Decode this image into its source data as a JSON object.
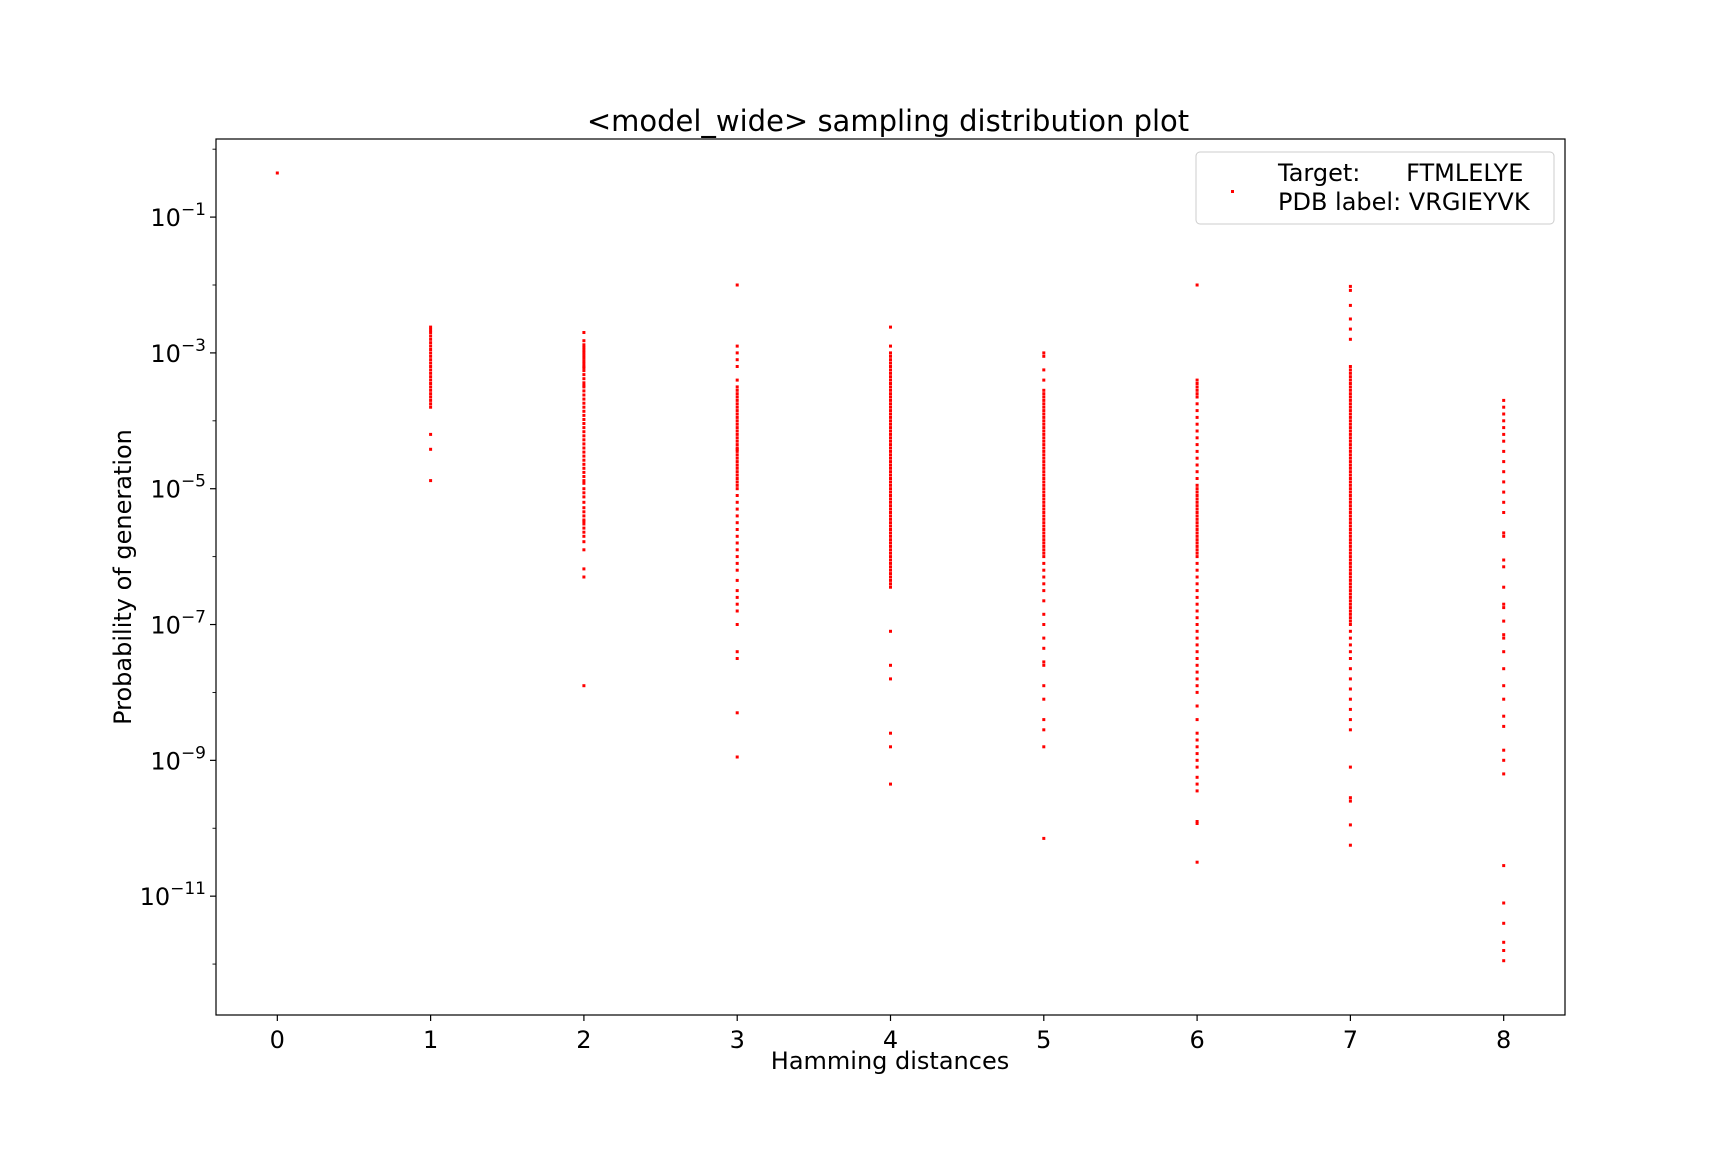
{
  "chart_data": {
    "type": "scatter",
    "title": "<model_wide> sampling distribution plot",
    "xlabel": "Hamming distances",
    "ylabel": "Probability of generation",
    "x_ticks": [
      "0",
      "1",
      "2",
      "3",
      "4",
      "5",
      "6",
      "7",
      "8"
    ],
    "y_ticks": [
      {
        "base": "10",
        "exp": "−1",
        "value": 0.1
      },
      {
        "base": "10",
        "exp": "−3",
        "value": 0.001
      },
      {
        "base": "10",
        "exp": "−5",
        "value": 1e-05
      },
      {
        "base": "10",
        "exp": "−7",
        "value": 1e-07
      },
      {
        "base": "10",
        "exp": "−9",
        "value": 1e-09
      },
      {
        "base": "10",
        "exp": "−11",
        "value": 1e-11
      }
    ],
    "x_range": [
      -0.4,
      8.4
    ],
    "y_log": true,
    "y_range_log10": [
      -12.75,
      0.15
    ],
    "grid": false,
    "legend_position": "top-right",
    "legend_entries": [
      "Target:      FTMLELYE",
      "PDB label: VRGIEYVK"
    ],
    "marker_color": "#ff0000",
    "series": [
      {
        "x": [
          0
        ],
        "y_log10": [
          -0.35
        ]
      },
      {
        "x": [
          1,
          1,
          1,
          1,
          1,
          1,
          1,
          1,
          1,
          1,
          1,
          1,
          1,
          1,
          1,
          1,
          1,
          1,
          1,
          1,
          1,
          1,
          1,
          1,
          1,
          1,
          1,
          1
        ],
        "y_log10": [
          -2.62,
          -2.66,
          -2.7,
          -2.75,
          -2.8,
          -2.85,
          -2.9,
          -2.95,
          -3.0,
          -3.05,
          -3.1,
          -3.15,
          -3.2,
          -3.25,
          -3.3,
          -3.35,
          -3.4,
          -3.45,
          -3.5,
          -3.55,
          -3.6,
          -3.65,
          -3.7,
          -3.75,
          -3.8,
          -4.2,
          -4.42,
          -4.88
        ]
      },
      {
        "x": [
          2,
          2,
          2,
          2,
          2,
          2,
          2,
          2,
          2,
          2,
          2,
          2,
          2,
          2,
          2,
          2,
          2,
          2,
          2,
          2,
          2,
          2,
          2,
          2,
          2,
          2,
          2,
          2,
          2,
          2,
          2,
          2,
          2,
          2,
          2,
          2,
          2,
          2,
          2,
          2,
          2,
          2,
          2,
          2,
          2,
          2,
          2,
          2,
          2,
          2,
          2,
          2,
          2,
          2,
          2,
          2,
          2,
          2,
          2,
          2
        ],
        "y_log10": [
          -2.7,
          -2.82,
          -2.88,
          -2.92,
          -2.96,
          -3.0,
          -3.04,
          -3.08,
          -3.12,
          -3.16,
          -3.2,
          -3.26,
          -3.32,
          -3.38,
          -3.44,
          -3.5,
          -3.56,
          -3.62,
          -3.68,
          -3.74,
          -3.8,
          -3.86,
          -3.92,
          -3.98,
          -4.04,
          -4.1,
          -4.16,
          -4.22,
          -4.28,
          -4.34,
          -4.4,
          -4.46,
          -4.52,
          -4.58,
          -4.64,
          -4.7,
          -4.76,
          -4.82,
          -4.88,
          -5.0,
          -5.06,
          -5.12,
          -5.2,
          -5.28,
          -5.34,
          -5.4,
          -5.46,
          -5.52,
          -5.58,
          -5.64,
          -5.7,
          -5.78,
          -5.9,
          -6.18,
          -6.3,
          -7.9,
          -5.48,
          -4.92,
          -3.48,
          -3.22
        ]
      },
      {
        "x": [
          3,
          3,
          3,
          3,
          3,
          3,
          3,
          3,
          3,
          3,
          3,
          3,
          3,
          3,
          3,
          3,
          3,
          3,
          3,
          3,
          3,
          3,
          3,
          3,
          3,
          3,
          3,
          3,
          3,
          3,
          3,
          3,
          3,
          3,
          3,
          3,
          3,
          3,
          3,
          3,
          3,
          3,
          3,
          3,
          3,
          3,
          3,
          3,
          3,
          3,
          3,
          3,
          3,
          3,
          3,
          3,
          3,
          3,
          3,
          3
        ],
        "y_log10": [
          -2.0,
          -2.9,
          -3.0,
          -3.1,
          -3.2,
          -3.4,
          -3.5,
          -3.55,
          -3.6,
          -3.65,
          -3.7,
          -3.75,
          -3.8,
          -3.85,
          -3.9,
          -3.95,
          -4.0,
          -4.05,
          -4.1,
          -4.15,
          -4.2,
          -4.25,
          -4.3,
          -4.35,
          -4.4,
          -4.45,
          -4.5,
          -4.55,
          -4.6,
          -4.65,
          -4.7,
          -4.75,
          -4.8,
          -4.85,
          -4.9,
          -4.95,
          -5.0,
          -5.1,
          -5.2,
          -5.3,
          -5.4,
          -5.5,
          -5.6,
          -5.7,
          -5.8,
          -5.9,
          -6.0,
          -6.1,
          -6.2,
          -6.35,
          -6.5,
          -6.6,
          -6.7,
          -6.8,
          -7.0,
          -7.4,
          -7.5,
          -8.3,
          -8.95,
          -4.42
        ]
      },
      {
        "x": [
          4,
          4,
          4,
          4,
          4,
          4,
          4,
          4,
          4,
          4,
          4,
          4,
          4,
          4,
          4,
          4,
          4,
          4,
          4,
          4,
          4,
          4,
          4,
          4,
          4,
          4,
          4,
          4,
          4,
          4,
          4,
          4,
          4,
          4,
          4,
          4,
          4,
          4,
          4,
          4,
          4,
          4,
          4,
          4,
          4,
          4,
          4,
          4,
          4,
          4,
          4,
          4,
          4,
          4,
          4,
          4,
          4,
          4,
          4,
          4,
          4,
          4,
          4,
          4,
          4,
          4,
          4,
          4,
          4,
          4,
          4,
          4,
          4,
          4,
          4,
          4,
          4,
          4
        ],
        "y_log10": [
          -2.62,
          -2.9,
          -3.0,
          -3.05,
          -3.1,
          -3.15,
          -3.2,
          -3.25,
          -3.3,
          -3.35,
          -3.4,
          -3.45,
          -3.5,
          -3.55,
          -3.6,
          -3.65,
          -3.7,
          -3.75,
          -3.8,
          -3.85,
          -3.9,
          -3.95,
          -4.0,
          -4.05,
          -4.1,
          -4.15,
          -4.2,
          -4.25,
          -4.3,
          -4.35,
          -4.4,
          -4.45,
          -4.5,
          -4.55,
          -4.6,
          -4.65,
          -4.7,
          -4.75,
          -4.8,
          -4.85,
          -4.9,
          -4.95,
          -5.0,
          -5.05,
          -5.1,
          -5.15,
          -5.2,
          -5.25,
          -5.3,
          -5.35,
          -5.4,
          -5.45,
          -5.5,
          -5.55,
          -5.6,
          -5.65,
          -5.7,
          -5.75,
          -5.8,
          -5.85,
          -5.9,
          -5.95,
          -6.0,
          -6.05,
          -6.1,
          -6.15,
          -6.2,
          -6.25,
          -6.3,
          -6.35,
          -6.4,
          -6.45,
          -7.1,
          -7.6,
          -7.8,
          -8.6,
          -8.8,
          -9.35
        ]
      },
      {
        "x": [
          5,
          5,
          5,
          5,
          5,
          5,
          5,
          5,
          5,
          5,
          5,
          5,
          5,
          5,
          5,
          5,
          5,
          5,
          5,
          5,
          5,
          5,
          5,
          5,
          5,
          5,
          5,
          5,
          5,
          5,
          5,
          5,
          5,
          5,
          5,
          5,
          5,
          5,
          5,
          5,
          5,
          5,
          5,
          5,
          5,
          5,
          5,
          5,
          5,
          5,
          5,
          5,
          5,
          5,
          5,
          5,
          5,
          5,
          5,
          5,
          5,
          5,
          5,
          5,
          5,
          5,
          5,
          5,
          5,
          5,
          5,
          5
        ],
        "y_log10": [
          -3.0,
          -3.05,
          -3.25,
          -3.4,
          -3.55,
          -3.6,
          -3.65,
          -3.7,
          -3.75,
          -3.8,
          -3.85,
          -3.9,
          -3.95,
          -4.0,
          -4.05,
          -4.1,
          -4.15,
          -4.2,
          -4.25,
          -4.3,
          -4.35,
          -4.4,
          -4.45,
          -4.5,
          -4.55,
          -4.6,
          -4.65,
          -4.7,
          -4.75,
          -4.8,
          -4.85,
          -4.9,
          -4.95,
          -5.0,
          -5.05,
          -5.1,
          -5.15,
          -5.2,
          -5.25,
          -5.3,
          -5.35,
          -5.4,
          -5.45,
          -5.5,
          -5.55,
          -5.6,
          -5.65,
          -5.7,
          -5.75,
          -5.8,
          -5.85,
          -5.9,
          -5.95,
          -6.0,
          -6.1,
          -6.2,
          -6.3,
          -6.4,
          -6.5,
          -6.65,
          -6.85,
          -7.0,
          -7.2,
          -7.35,
          -7.55,
          -7.6,
          -7.9,
          -8.1,
          -8.4,
          -8.55,
          -8.8,
          -10.15
        ]
      },
      {
        "x": [
          6,
          6,
          6,
          6,
          6,
          6,
          6,
          6,
          6,
          6,
          6,
          6,
          6,
          6,
          6,
          6,
          6,
          6,
          6,
          6,
          6,
          6,
          6,
          6,
          6,
          6,
          6,
          6,
          6,
          6,
          6,
          6,
          6,
          6,
          6,
          6,
          6,
          6,
          6,
          6,
          6,
          6,
          6,
          6,
          6,
          6,
          6,
          6,
          6,
          6,
          6,
          6,
          6,
          6,
          6,
          6,
          6,
          6,
          6,
          6,
          6,
          6,
          6,
          6,
          6,
          6,
          6,
          6,
          6,
          6,
          6,
          6,
          6,
          6,
          6
        ],
        "y_log10": [
          -2.0,
          -3.4,
          -3.45,
          -3.5,
          -3.55,
          -3.6,
          -3.65,
          -3.75,
          -3.85,
          -3.95,
          -4.05,
          -4.15,
          -4.25,
          -4.35,
          -4.45,
          -4.55,
          -4.65,
          -4.75,
          -4.85,
          -4.95,
          -5.0,
          -5.05,
          -5.1,
          -5.15,
          -5.2,
          -5.25,
          -5.3,
          -5.35,
          -5.4,
          -5.45,
          -5.5,
          -5.55,
          -5.6,
          -5.65,
          -5.7,
          -5.75,
          -5.8,
          -5.85,
          -5.9,
          -5.95,
          -6.0,
          -6.1,
          -6.2,
          -6.3,
          -6.4,
          -6.5,
          -6.6,
          -6.7,
          -6.8,
          -6.9,
          -7.0,
          -7.1,
          -7.2,
          -7.3,
          -7.4,
          -7.5,
          -7.6,
          -7.7,
          -7.8,
          -7.9,
          -8.0,
          -8.2,
          -8.4,
          -8.6,
          -8.7,
          -8.8,
          -8.9,
          -9.0,
          -9.1,
          -9.25,
          -9.35,
          -9.45,
          -9.9,
          -9.93,
          -10.5
        ]
      },
      {
        "x": [
          7,
          7,
          7,
          7,
          7,
          7,
          7,
          7,
          7,
          7,
          7,
          7,
          7,
          7,
          7,
          7,
          7,
          7,
          7,
          7,
          7,
          7,
          7,
          7,
          7,
          7,
          7,
          7,
          7,
          7,
          7,
          7,
          7,
          7,
          7,
          7,
          7,
          7,
          7,
          7,
          7,
          7,
          7,
          7,
          7,
          7,
          7,
          7,
          7,
          7,
          7,
          7,
          7,
          7,
          7,
          7,
          7,
          7,
          7,
          7,
          7,
          7,
          7,
          7,
          7,
          7,
          7,
          7,
          7,
          7,
          7,
          7,
          7,
          7,
          7,
          7,
          7,
          7,
          7,
          7,
          7,
          7,
          7,
          7,
          7,
          7,
          7,
          7,
          7,
          7,
          7,
          7,
          7,
          7,
          7,
          7,
          7,
          7,
          7,
          7
        ],
        "y_log10": [
          -2.02,
          -2.08,
          -2.3,
          -2.5,
          -2.65,
          -2.8,
          -3.2,
          -3.25,
          -3.3,
          -3.35,
          -3.4,
          -3.45,
          -3.5,
          -3.55,
          -3.6,
          -3.65,
          -3.7,
          -3.75,
          -3.8,
          -3.85,
          -3.9,
          -3.95,
          -4.0,
          -4.05,
          -4.1,
          -4.15,
          -4.2,
          -4.25,
          -4.3,
          -4.35,
          -4.4,
          -4.45,
          -4.5,
          -4.55,
          -4.6,
          -4.65,
          -4.7,
          -4.75,
          -4.8,
          -4.85,
          -4.9,
          -4.95,
          -5.0,
          -5.05,
          -5.1,
          -5.15,
          -5.2,
          -5.25,
          -5.3,
          -5.35,
          -5.4,
          -5.45,
          -5.5,
          -5.55,
          -5.6,
          -5.65,
          -5.7,
          -5.75,
          -5.8,
          -5.85,
          -5.9,
          -5.95,
          -6.0,
          -6.05,
          -6.1,
          -6.15,
          -6.2,
          -6.25,
          -6.3,
          -6.35,
          -6.4,
          -6.45,
          -6.5,
          -6.55,
          -6.6,
          -6.65,
          -6.7,
          -6.75,
          -6.8,
          -6.85,
          -6.9,
          -6.95,
          -7.0,
          -7.1,
          -7.2,
          -7.3,
          -7.4,
          -7.5,
          -7.65,
          -7.8,
          -7.95,
          -8.1,
          -8.25,
          -8.4,
          -8.55,
          -9.1,
          -9.55,
          -9.6,
          -9.95,
          -10.25
        ]
      },
      {
        "x": [
          8,
          8,
          8,
          8,
          8,
          8,
          8,
          8,
          8,
          8,
          8,
          8,
          8,
          8,
          8,
          8,
          8,
          8,
          8,
          8,
          8,
          8,
          8,
          8,
          8,
          8,
          8,
          8,
          8,
          8,
          8,
          8,
          8,
          8,
          8,
          8,
          8,
          8,
          8
        ],
        "y_log10": [
          -3.7,
          -3.8,
          -3.9,
          -4.0,
          -4.1,
          -4.2,
          -4.3,
          -4.45,
          -4.6,
          -4.75,
          -4.9,
          -5.05,
          -5.2,
          -5.35,
          -5.65,
          -5.7,
          -6.05,
          -6.15,
          -6.45,
          -6.7,
          -6.75,
          -6.95,
          -7.15,
          -7.2,
          -7.4,
          -7.65,
          -7.9,
          -8.1,
          -8.35,
          -8.5,
          -8.85,
          -9.0,
          -9.2,
          -10.55,
          -11.4,
          -11.68,
          -11.8,
          -11.95,
          -11.1
        ]
      }
    ]
  }
}
